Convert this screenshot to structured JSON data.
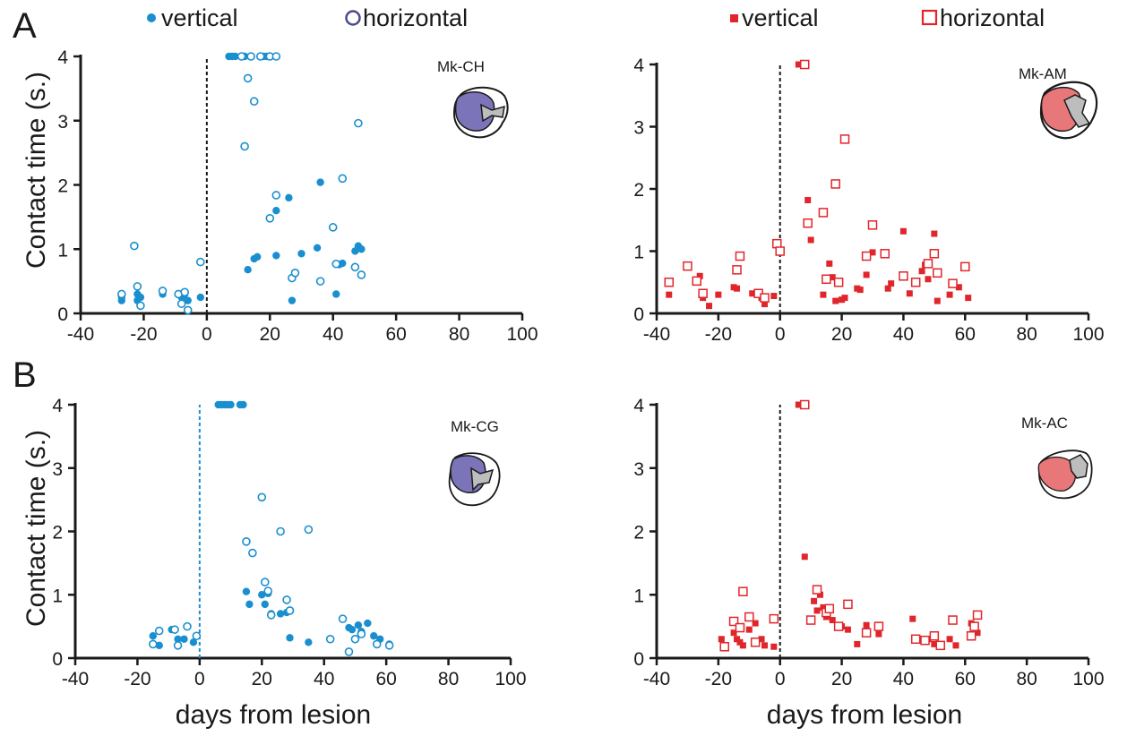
{
  "figure": {
    "panel_letters": [
      "A",
      "B"
    ],
    "ylabel": "Contact time (s.)",
    "xlabel": "days from lesion"
  },
  "legends": {
    "blue": {
      "vertical": "vertical",
      "horizontal": "horizontal",
      "color": "#1a8fcf"
    },
    "red": {
      "vertical": "vertical",
      "horizontal": "horizontal",
      "color": "#e0262b"
    }
  },
  "colors": {
    "blue": "#1a8fcf",
    "red": "#e0262b",
    "axis": "#1a1a1a",
    "blue_brain": "#7b74b8",
    "red_brain": "#e8777a"
  },
  "chart_data": [
    {
      "type": "scatter",
      "title": "Mk-CH",
      "xlim": [
        -40,
        100
      ],
      "ylim": [
        0,
        4
      ],
      "xticks": [
        -40,
        -20,
        0,
        20,
        40,
        60,
        80,
        100
      ],
      "yticks": [
        0,
        1,
        2,
        3,
        4
      ],
      "lesion_day": 0,
      "series": [
        {
          "name": "vertical",
          "marker": "filled-circle",
          "color": "#1a8fcf",
          "x": [
            -27,
            -27,
            -22,
            -22,
            -21,
            -14,
            -8,
            -7,
            -6,
            -2,
            7,
            8,
            9,
            12,
            18,
            19,
            13,
            15,
            16,
            22,
            22,
            26,
            27,
            30,
            35,
            36,
            41,
            42,
            43,
            47,
            48,
            49
          ],
          "y": [
            0.2,
            0.25,
            0.2,
            0.3,
            0.25,
            0.3,
            0.25,
            0.3,
            0.2,
            0.25,
            4,
            4,
            4,
            4,
            4,
            4,
            0.68,
            0.85,
            0.88,
            0.9,
            1.6,
            1.8,
            0.2,
            0.93,
            1.02,
            2.04,
            0.3,
            0.76,
            0.78,
            0.97,
            1.05,
            1.0
          ]
        },
        {
          "name": "horizontal",
          "marker": "open-circle",
          "color": "#1a8fcf",
          "x": [
            -27,
            -23,
            -22,
            -21,
            -14,
            -9,
            -8,
            -7,
            -6,
            -2,
            11,
            14,
            17,
            20,
            22,
            12,
            13,
            15,
            20,
            22,
            27,
            28,
            36,
            40,
            41,
            43,
            47,
            48,
            49
          ],
          "y": [
            0.3,
            1.05,
            0.42,
            0.12,
            0.35,
            0.3,
            0.15,
            0.33,
            0.05,
            0.8,
            4,
            4,
            4,
            4,
            4,
            2.6,
            3.66,
            3.3,
            1.48,
            1.84,
            0.55,
            0.63,
            0.5,
            1.34,
            0.77,
            2.1,
            0.72,
            2.96,
            0.6
          ]
        }
      ]
    },
    {
      "type": "scatter",
      "title": "Mk-AM",
      "xlim": [
        -40,
        100
      ],
      "ylim": [
        0,
        4
      ],
      "xticks": [
        -40,
        -20,
        0,
        20,
        40,
        60,
        80,
        100
      ],
      "yticks": [
        0,
        1,
        2,
        3,
        4
      ],
      "lesion_day": 0,
      "series": [
        {
          "name": "vertical",
          "marker": "filled-square",
          "color": "#e0262b",
          "x": [
            -36,
            -26,
            -25,
            -23,
            -20,
            -15,
            -14,
            -9,
            -7,
            -6,
            -5,
            -2,
            6,
            7,
            9,
            10,
            14,
            16,
            17,
            18,
            20,
            21,
            25,
            26,
            28,
            30,
            35,
            36,
            40,
            42,
            46,
            47,
            48,
            50,
            51,
            55,
            58,
            61
          ],
          "y": [
            0.3,
            0.6,
            0.25,
            0.12,
            0.3,
            0.42,
            0.4,
            0.32,
            0.3,
            0.25,
            0.15,
            0.28,
            4,
            4,
            1.82,
            1.18,
            0.3,
            0.8,
            0.58,
            0.2,
            0.22,
            0.25,
            0.4,
            0.38,
            0.62,
            0.98,
            0.4,
            0.48,
            1.32,
            0.32,
            0.68,
            0.78,
            0.55,
            1.28,
            0.2,
            0.3,
            0.42,
            0.25
          ]
        },
        {
          "name": "horizontal",
          "marker": "open-square",
          "color": "#e0262b",
          "x": [
            -36,
            -30,
            -27,
            -25,
            -14,
            -13,
            -7,
            -5,
            -1,
            0,
            8,
            9,
            14,
            15,
            18,
            19,
            21,
            28,
            30,
            34,
            40,
            44,
            48,
            50,
            51,
            56,
            60
          ],
          "y": [
            0.5,
            0.76,
            0.52,
            0.32,
            0.7,
            0.92,
            0.32,
            0.25,
            1.12,
            1.0,
            4,
            1.45,
            1.62,
            0.55,
            2.08,
            0.5,
            2.8,
            0.92,
            1.42,
            0.96,
            0.6,
            0.5,
            0.8,
            0.96,
            0.65,
            0.48,
            0.75
          ]
        }
      ]
    },
    {
      "type": "scatter",
      "title": "Mk-CG",
      "xlim": [
        -40,
        100
      ],
      "ylim": [
        0,
        4
      ],
      "xticks": [
        -40,
        -20,
        0,
        20,
        40,
        60,
        80,
        100
      ],
      "yticks": [
        0,
        1,
        2,
        3,
        4
      ],
      "lesion_day": 0,
      "series": [
        {
          "name": "vertical",
          "marker": "filled-circle",
          "color": "#1a8fcf",
          "x": [
            -15,
            -13,
            -9,
            -7,
            -5,
            -2,
            6,
            7,
            8,
            9,
            10,
            13,
            14,
            15,
            16,
            20,
            21,
            22,
            23,
            26,
            28,
            29,
            35,
            48,
            49,
            51,
            52,
            54,
            56,
            58,
            61
          ],
          "y": [
            0.35,
            0.2,
            0.45,
            0.3,
            0.3,
            0.25,
            4,
            4,
            4,
            4,
            4,
            4,
            4,
            1.05,
            0.85,
            1.0,
            0.85,
            1.02,
            0.7,
            0.7,
            0.72,
            0.32,
            0.25,
            0.48,
            0.45,
            0.52,
            0.42,
            0.55,
            0.35,
            0.3,
            0.22
          ]
        },
        {
          "name": "horizontal",
          "marker": "open-circle",
          "color": "#1a8fcf",
          "x": [
            -15,
            -13,
            -8,
            -7,
            -4,
            -1,
            15,
            17,
            20,
            21,
            22,
            23,
            26,
            28,
            29,
            35,
            42,
            46,
            48,
            50,
            52,
            57,
            61
          ],
          "y": [
            0.22,
            0.43,
            0.45,
            0.2,
            0.5,
            0.35,
            1.84,
            1.66,
            2.54,
            1.2,
            1.06,
            0.68,
            2.0,
            0.92,
            0.75,
            2.03,
            0.3,
            0.62,
            0.1,
            0.3,
            0.38,
            0.22,
            0.2
          ]
        }
      ]
    },
    {
      "type": "scatter",
      "title": "Mk-AC",
      "xlim": [
        -40,
        100
      ],
      "ylim": [
        0,
        4
      ],
      "xticks": [
        -40,
        -20,
        0,
        20,
        40,
        60,
        80,
        100
      ],
      "yticks": [
        0,
        1,
        2,
        3,
        4
      ],
      "lesion_day": 0,
      "series": [
        {
          "name": "vertical",
          "marker": "filled-square",
          "color": "#e0262b",
          "x": [
            -19,
            -18,
            -15,
            -14,
            -13,
            -12,
            -10,
            -8,
            -6,
            -5,
            -2,
            6,
            7,
            8,
            8,
            10,
            11,
            12,
            13,
            14,
            15,
            17,
            20,
            22,
            25,
            28,
            32,
            43,
            46,
            48,
            50,
            52,
            55,
            57,
            62,
            64
          ],
          "y": [
            0.3,
            0.2,
            0.4,
            0.3,
            0.25,
            0.2,
            0.45,
            0.55,
            0.3,
            0.2,
            0.18,
            4,
            4,
            4,
            1.6,
            0.6,
            0.9,
            0.75,
            1.0,
            0.8,
            0.65,
            0.6,
            0.5,
            0.45,
            0.22,
            0.52,
            0.38,
            0.62,
            0.28,
            0.3,
            0.22,
            0.2,
            0.3,
            0.2,
            0.55,
            0.4
          ]
        },
        {
          "name": "horizontal",
          "marker": "open-square",
          "color": "#e0262b",
          "x": [
            -18,
            -15,
            -13,
            -12,
            -10,
            -8,
            -2,
            8,
            10,
            12,
            15,
            16,
            19,
            22,
            28,
            32,
            44,
            47,
            50,
            52,
            56,
            62,
            63,
            64
          ],
          "y": [
            0.18,
            0.58,
            0.48,
            1.05,
            0.65,
            0.25,
            0.62,
            4,
            0.6,
            1.08,
            0.72,
            0.78,
            0.5,
            0.85,
            0.4,
            0.5,
            0.3,
            0.28,
            0.35,
            0.2,
            0.6,
            0.35,
            0.5,
            0.68
          ]
        }
      ]
    }
  ]
}
